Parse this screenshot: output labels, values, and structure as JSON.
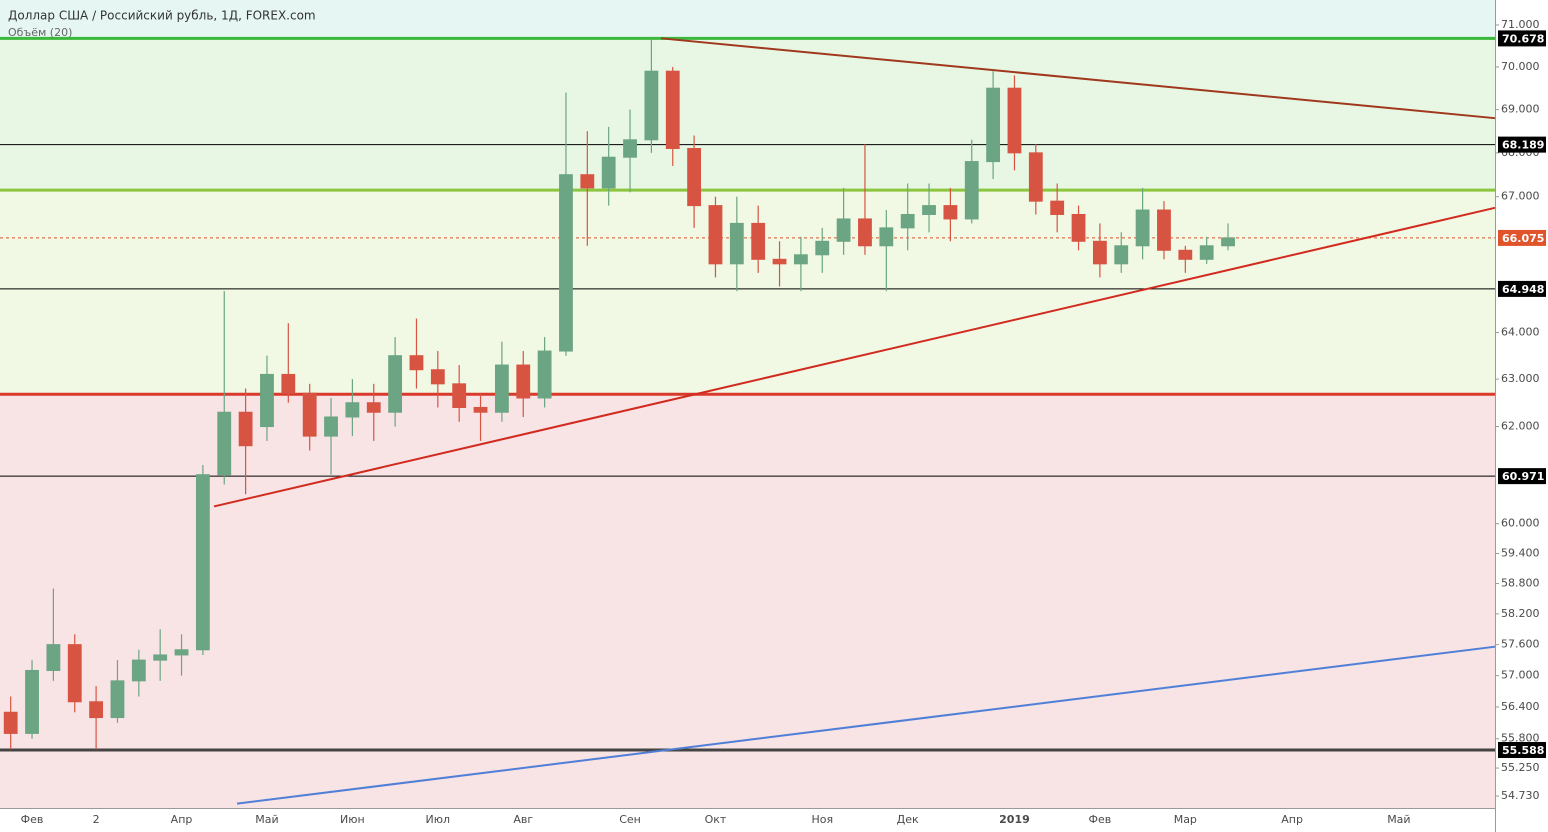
{
  "chart_data": {
    "type": "candlestick",
    "title": "Доллар США / Российский рубль, 1Д, FOREX.com",
    "subtitle": "Объём (20)",
    "log_scale": true,
    "ylim": [
      54.51,
      71.6
    ],
    "yticks": [
      {
        "value": 71,
        "label": "71.000"
      },
      {
        "value": 70,
        "label": "70.000"
      },
      {
        "value": 69,
        "label": "69.000"
      },
      {
        "value": 68,
        "label": "68.000"
      },
      {
        "value": 67,
        "label": "67.000"
      },
      {
        "value": 64,
        "label": "64.000"
      },
      {
        "value": 63,
        "label": "63.000"
      },
      {
        "value": 62,
        "label": "62.000"
      },
      {
        "value": 60,
        "label": "60.000"
      },
      {
        "value": 59.4,
        "label": "59.400"
      },
      {
        "value": 58.8,
        "label": "58.800"
      },
      {
        "value": 58.2,
        "label": "58.200"
      },
      {
        "value": 57.6,
        "label": "57.600"
      },
      {
        "value": 57,
        "label": "57.000"
      },
      {
        "value": 56.4,
        "label": "56.400"
      },
      {
        "value": 55.8,
        "label": "55.800"
      },
      {
        "value": 55.25,
        "label": "55.250"
      },
      {
        "value": 54.73,
        "label": "54.730"
      }
    ],
    "categories": [
      null,
      "Фев",
      null,
      null,
      "2",
      null,
      null,
      null,
      "Апр",
      null,
      null,
      null,
      "Май",
      null,
      null,
      null,
      "Июн",
      null,
      null,
      null,
      "Июл",
      null,
      null,
      null,
      "Авг",
      null,
      null,
      null,
      null,
      "Сен",
      null,
      null,
      null,
      "Окт",
      null,
      null,
      null,
      null,
      "Ноя",
      null,
      null,
      null,
      "Дек",
      null,
      null,
      null,
      null,
      "2019",
      null,
      null,
      null,
      "Фев",
      null,
      null,
      null,
      "Мар",
      null,
      null,
      null,
      null,
      "Апр",
      null,
      null,
      null,
      null,
      "Май",
      null,
      null,
      null,
      null
    ],
    "open": [
      56.3,
      55.9,
      57.1,
      57.6,
      56.5,
      56.2,
      56.9,
      57.3,
      57.4,
      57.5,
      61.0,
      62.3,
      62.0,
      63.1,
      62.7,
      61.8,
      62.2,
      62.5,
      62.3,
      63.5,
      63.2,
      62.9,
      62.4,
      62.3,
      63.3,
      62.6,
      63.6,
      67.5,
      67.2,
      67.9,
      68.3,
      69.9,
      68.1,
      66.8,
      65.5,
      66.4,
      65.6,
      65.5,
      65.7,
      66.0,
      66.5,
      65.9,
      66.3,
      66.6,
      66.8,
      66.5,
      67.8,
      69.5,
      68.0,
      66.9,
      66.6,
      66.0,
      65.5,
      65.9,
      66.7,
      65.8,
      65.6,
      65.9,
      null,
      null,
      null,
      null,
      null,
      null,
      null,
      null,
      null,
      null,
      null,
      null
    ],
    "high": [
      56.6,
      57.3,
      58.7,
      57.8,
      56.8,
      57.3,
      57.5,
      57.9,
      57.8,
      61.2,
      64.9,
      62.8,
      63.5,
      64.2,
      62.9,
      62.6,
      63.0,
      62.9,
      63.9,
      64.3,
      63.6,
      63.3,
      62.7,
      63.8,
      63.6,
      63.9,
      69.4,
      68.5,
      68.6,
      69.0,
      70.7,
      70.0,
      68.4,
      67.0,
      67.0,
      66.8,
      66.0,
      66.1,
      66.3,
      67.2,
      68.2,
      66.7,
      67.3,
      67.3,
      67.2,
      68.3,
      69.9,
      69.8,
      68.2,
      67.3,
      66.8,
      66.4,
      66.2,
      67.2,
      66.9,
      65.9,
      66.1,
      66.4,
      null,
      null,
      null,
      null,
      null,
      null,
      null,
      null,
      null,
      null,
      null,
      null
    ],
    "low": [
      55.6,
      55.8,
      56.9,
      56.3,
      55.6,
      56.1,
      56.6,
      56.9,
      57.0,
      57.4,
      60.8,
      60.6,
      61.7,
      62.5,
      61.5,
      61.0,
      61.8,
      61.7,
      62.0,
      62.8,
      62.4,
      62.1,
      61.7,
      62.1,
      62.2,
      62.4,
      63.5,
      65.9,
      66.8,
      67.1,
      68.0,
      67.7,
      66.3,
      65.2,
      64.9,
      65.3,
      65.0,
      64.9,
      65.3,
      65.7,
      65.7,
      64.9,
      65.8,
      66.2,
      66.0,
      66.4,
      67.4,
      67.6,
      66.6,
      66.2,
      65.8,
      65.2,
      65.3,
      65.6,
      65.6,
      65.3,
      65.5,
      65.8,
      null,
      null,
      null,
      null,
      null,
      null,
      null,
      null,
      null,
      null,
      null,
      null
    ],
    "close": [
      55.9,
      57.1,
      57.6,
      56.5,
      56.2,
      56.9,
      57.3,
      57.4,
      57.5,
      61.0,
      62.3,
      61.6,
      63.1,
      62.7,
      61.8,
      62.2,
      62.5,
      62.3,
      63.5,
      63.2,
      62.9,
      62.4,
      62.3,
      63.3,
      62.6,
      63.6,
      67.5,
      67.2,
      67.9,
      68.3,
      69.9,
      68.1,
      66.8,
      65.5,
      66.4,
      65.6,
      65.5,
      65.7,
      66.0,
      66.5,
      65.9,
      66.3,
      66.6,
      66.8,
      66.5,
      67.8,
      69.5,
      68.0,
      66.9,
      66.6,
      66.0,
      65.5,
      65.9,
      66.7,
      65.8,
      65.6,
      65.9,
      66.075,
      null,
      null,
      null,
      null,
      null,
      null,
      null,
      null,
      null,
      null,
      null,
      null
    ],
    "up_color": "#6ba583",
    "down_color": "#d75442",
    "zones": [
      {
        "from": 70.678,
        "to": 71.6,
        "color": "#e6f7f3"
      },
      {
        "from": 67.15,
        "to": 70.678,
        "color": "#e8f7e4"
      },
      {
        "from": 62.68,
        "to": 67.15,
        "color": "#f1f8e4"
      },
      {
        "from": 54.51,
        "to": 62.68,
        "color": "#f8e3e5"
      }
    ],
    "levels": [
      {
        "value": 70.678,
        "color": "#3cb83c",
        "width": 3,
        "label_color": "#000000"
      },
      {
        "value": 68.189,
        "color": "#000000",
        "width": 1,
        "label_color": "#000000"
      },
      {
        "value": 67.15,
        "color": "#8cc63f",
        "width": 3
      },
      {
        "value": 66.075,
        "color": "#e0542b",
        "width": 1,
        "dashed": true,
        "label_color": "#e0542b"
      },
      {
        "value": 64.948,
        "color": "#000000",
        "width": 1,
        "label_color": "#000000"
      },
      {
        "value": 62.68,
        "color": "#d93a2b",
        "width": 3
      },
      {
        "value": 60.971,
        "color": "#000000",
        "width": 1,
        "label_color": "#000000"
      },
      {
        "value": 55.588,
        "color": "#444444",
        "width": 3,
        "label_color": "#000000"
      }
    ],
    "trendlines": [
      {
        "x": [
          30.45,
          69.5
        ],
        "y": [
          70.68,
          68.8
        ],
        "color": "#a0381e"
      },
      {
        "x": [
          9.52,
          69.5
        ],
        "y": [
          60.35,
          66.75
        ],
        "color": "#d12b1f"
      },
      {
        "x": [
          10.6,
          69.5
        ],
        "y": [
          54.59,
          57.56
        ],
        "color": "#4f7fd6"
      }
    ]
  }
}
